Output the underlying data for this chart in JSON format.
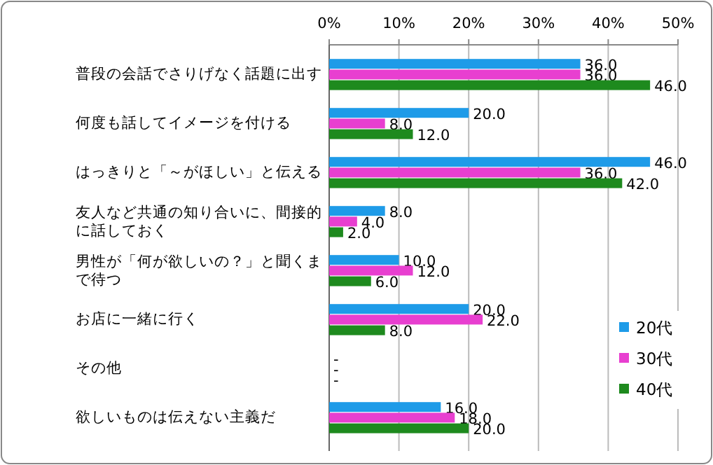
{
  "chart_data": {
    "type": "bar",
    "orientation": "horizontal",
    "categories": [
      "普段の会話でさりげなく話題に出す",
      "何度も話してイメージを付ける",
      "はっきりと「～がほしい」と伝える",
      "友人など共通の知り合いに、間接的に話しておく",
      "男性が「何が欲しいの？」と聞くまで待つ",
      "お店に一緒に行く",
      "その他",
      "欲しいものは伝えない主義だ"
    ],
    "series": [
      {
        "name": "20代",
        "color": "#1e9be8",
        "values": [
          36,
          20,
          46,
          8,
          10,
          20,
          0,
          16
        ],
        "value_labels": [
          "36.0",
          "20.0",
          "46.0",
          "8.0",
          "10.0",
          "20.0",
          "-",
          "16.0"
        ]
      },
      {
        "name": "30代",
        "color": "#e83fd0",
        "values": [
          36,
          8,
          36,
          4,
          12,
          22,
          0,
          18
        ],
        "value_labels": [
          "36.0",
          "8.0",
          "36.0",
          "4.0",
          "12.0",
          "22.0",
          "-",
          "18.0"
        ]
      },
      {
        "name": "40代",
        "color": "#1e8a1e",
        "values": [
          46,
          12,
          42,
          2,
          6,
          8,
          0,
          20
        ],
        "value_labels": [
          "46.0",
          "12.0",
          "42.0",
          "2.0",
          "6.0",
          "8.0",
          "-",
          "20.0"
        ]
      }
    ],
    "xlim": [
      0,
      50
    ],
    "xticks": [
      {
        "value": 0,
        "label": "0%"
      },
      {
        "value": 10,
        "label": "10%"
      },
      {
        "value": 20,
        "label": "20%"
      },
      {
        "value": 30,
        "label": "30%"
      },
      {
        "value": 40,
        "label": "40%"
      },
      {
        "value": 50,
        "label": "50%"
      }
    ],
    "grid": "x",
    "legend": "right"
  }
}
